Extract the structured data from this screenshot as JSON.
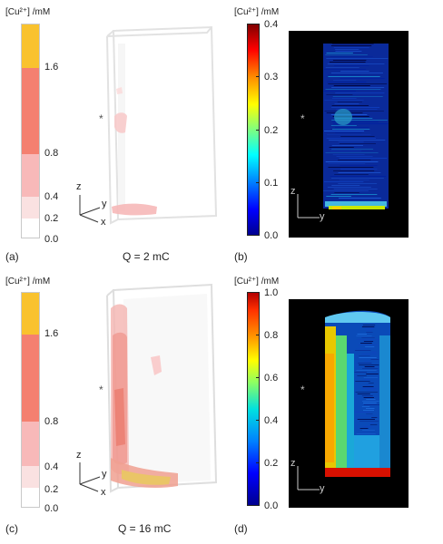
{
  "colors": {
    "bin_0_0.2": "#ffffff",
    "bin_0.2_0.4": "#fae1e1",
    "bin_0.4_0.8": "#f8b9b9",
    "bin_0.8_1.6": "#f48070",
    "bin_1.6_up": "#f9c22e",
    "jet_low": "#00008f",
    "jet_high": "#b30000"
  },
  "panels": [
    {
      "unit_label": "[Cu²⁺] /mM",
      "ticks": [
        "1.6",
        "0.8",
        "0.4",
        "0.2",
        "0.0"
      ],
      "letter": "(a)",
      "caption": "Q = 2 mC",
      "star": "*",
      "axes": {
        "z": "z",
        "y": "y",
        "x": "x"
      }
    },
    {
      "unit_label": "[Cu²⁺] /mM",
      "ticks": [
        "0.4",
        "0.3",
        "0.2",
        "0.1",
        "0.0"
      ],
      "letter": "(b)",
      "star": "*",
      "axes": {
        "z": "z",
        "y": "y"
      }
    },
    {
      "unit_label": "[Cu²⁺] /mM",
      "ticks": [
        "1.6",
        "0.8",
        "0.4",
        "0.2",
        "0.0"
      ],
      "letter": "(c)",
      "caption": "Q = 16 mC",
      "star": "*",
      "axes": {
        "z": "z",
        "y": "y",
        "x": "x"
      }
    },
    {
      "unit_label": "[Cu²⁺] /mM",
      "ticks": [
        "1.0",
        "0.8",
        "0.6",
        "0.4",
        "0.2",
        "0.0"
      ],
      "letter": "(d)",
      "star": "*",
      "axes": {
        "z": "z",
        "y": "y"
      }
    }
  ]
}
